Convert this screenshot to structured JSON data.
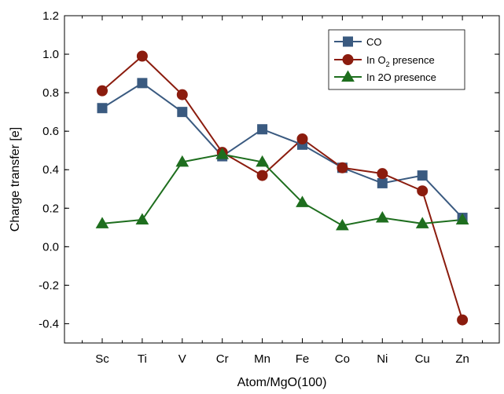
{
  "chart_data": {
    "type": "line",
    "xlabel": "Atom/MgO(100)",
    "ylabel": "Charge transfer [e]",
    "categories": [
      "Sc",
      "Ti",
      "V",
      "Cr",
      "Mn",
      "Fe",
      "Co",
      "Ni",
      "Cu",
      "Zn"
    ],
    "ylim": [
      -0.5,
      1.2
    ],
    "y_ticks": [
      -0.4,
      -0.2,
      0.0,
      0.2,
      0.4,
      0.6,
      0.8,
      1.0,
      1.2
    ],
    "y_tick_labels": [
      "-0.4",
      "-0.2",
      "0.0",
      "0.2",
      "0.4",
      "0.6",
      "0.8",
      "1.0",
      "1.2"
    ],
    "grid": false,
    "legend_position": "top-right",
    "legend": {
      "co": "CO",
      "o2_prefix": "In O",
      "o2_sub": "2",
      "o2_suffix": " presence",
      "twoO": "In 2O presence"
    },
    "series": [
      {
        "name": "CO",
        "color": "#3a5a80",
        "marker": "square",
        "values": [
          0.72,
          0.85,
          0.7,
          0.47,
          0.61,
          0.53,
          0.41,
          0.33,
          0.37,
          0.15
        ]
      },
      {
        "name": "In O2 presence",
        "color": "#8b1c0e",
        "marker": "circle",
        "values": [
          0.81,
          0.99,
          0.79,
          0.49,
          0.37,
          0.56,
          0.41,
          0.38,
          0.29,
          -0.38
        ]
      },
      {
        "name": "In 2O presence",
        "color": "#1e6e1e",
        "marker": "triangle",
        "values": [
          0.12,
          0.14,
          0.44,
          0.48,
          0.44,
          0.23,
          0.11,
          0.15,
          0.12,
          0.14
        ]
      }
    ]
  }
}
